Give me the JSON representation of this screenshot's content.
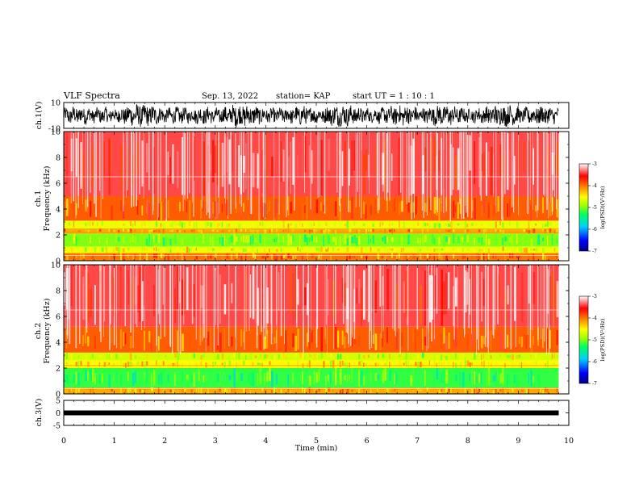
{
  "header": {
    "title": "VLF Spectra",
    "date": "Sep. 13, 2022",
    "station": "station= KAP",
    "start_ut": "start  UT =   1 : 10 : 1"
  },
  "colors": {
    "waveform": "#000000",
    "background": "#ffffff",
    "colormap": [
      "#000080",
      "#0000ff",
      "#00d0ff",
      "#00ff60",
      "#a0ff00",
      "#ffff00",
      "#ff8000",
      "#ff0000",
      "#ffffff"
    ]
  },
  "chart_data": [
    {
      "type": "line",
      "name": "ch1-waveform",
      "ylabel": "ch.1(V)",
      "ylim": [
        -10,
        10
      ],
      "y_ticks": [
        "10",
        "-10"
      ],
      "xlim": [
        0,
        10
      ],
      "visible_x_range": [
        0,
        9.8
      ],
      "description_values": {
        "typical_amplitude_V": [
          -8,
          8
        ]
      }
    },
    {
      "type": "heatmap",
      "name": "ch1-spectrogram",
      "ylabel": "ch.1\nFrequency  (kHz)",
      "ylabel_lines": [
        "ch.1",
        "Frequency  (kHz)"
      ],
      "ylim": [
        0,
        10
      ],
      "y_ticks": [
        "0",
        "2",
        "4",
        "6",
        "8",
        "10"
      ],
      "xlim": [
        0,
        10
      ],
      "visible_x_range": [
        0,
        9.8
      ],
      "log_psd_bands": [
        {
          "f_range_kHz": [
            0,
            0.6
          ],
          "level": -4.0
        },
        {
          "f_range_kHz": [
            0.6,
            1.1
          ],
          "level": -4.6
        },
        {
          "f_range_kHz": [
            1.1,
            2.1
          ],
          "level": -5.0
        },
        {
          "f_range_kHz": [
            2.1,
            2.5
          ],
          "level": -4.2
        },
        {
          "f_range_kHz": [
            2.5,
            3.1
          ],
          "level": -4.6
        },
        {
          "f_range_kHz": [
            3.1,
            5.0
          ],
          "level": -3.9
        },
        {
          "f_range_kHz": [
            5.0,
            10.0
          ],
          "level": -3.4
        }
      ],
      "colorbar": {
        "label": "log(PSD)(V²/Hz)",
        "ticks": [
          "-3",
          "-4",
          "-5",
          "-6",
          "-7"
        ],
        "range": [
          -7,
          -3
        ]
      }
    },
    {
      "type": "heatmap",
      "name": "ch2-spectrogram",
      "ylabel": "ch.2\nFrequency  (kHz)",
      "ylabel_lines": [
        "ch.2",
        "Frequency  (kHz)"
      ],
      "ylim": [
        0,
        10
      ],
      "y_ticks": [
        "0",
        "2",
        "4",
        "6",
        "8",
        "10"
      ],
      "xlim": [
        0,
        10
      ],
      "visible_x_range": [
        0,
        9.8
      ],
      "log_psd_bands": [
        {
          "f_range_kHz": [
            0,
            0.5
          ],
          "level": -4.2
        },
        {
          "f_range_kHz": [
            0.5,
            2.0
          ],
          "level": -5.2
        },
        {
          "f_range_kHz": [
            2.0,
            2.6
          ],
          "level": -4.5
        },
        {
          "f_range_kHz": [
            2.6,
            3.2
          ],
          "level": -4.7
        },
        {
          "f_range_kHz": [
            3.2,
            5.2
          ],
          "level": -3.9
        },
        {
          "f_range_kHz": [
            5.2,
            10.0
          ],
          "level": -3.4
        }
      ],
      "colorbar": {
        "label": "log(PSD)(V²/Hz)",
        "ticks": [
          "-3",
          "-4",
          "-5",
          "-6",
          "-7"
        ],
        "range": [
          -7,
          -3
        ]
      }
    },
    {
      "type": "line",
      "name": "ch3-waveform",
      "ylabel": "ch.3(V)",
      "ylim": [
        -5,
        5
      ],
      "y_ticks": [
        "5",
        "0",
        "-5"
      ],
      "xlim": [
        0,
        10
      ],
      "visible_x_range": [
        0,
        9.8
      ],
      "level_V": 0,
      "x_ticks": [
        "0",
        "1",
        "2",
        "3",
        "4",
        "5",
        "6",
        "7",
        "8",
        "9",
        "10"
      ],
      "xlabel": "Time  (min)"
    }
  ]
}
